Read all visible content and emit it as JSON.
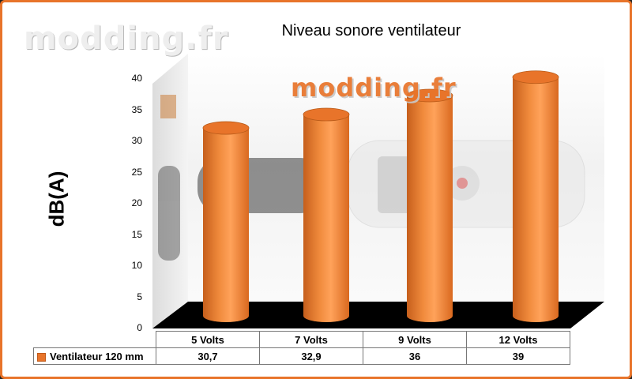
{
  "watermark": {
    "text": "modding.fr"
  },
  "chart_data": {
    "type": "bar",
    "title": "Niveau sonore ventilateur",
    "xlabel": "",
    "ylabel": "dB(A)",
    "categories": [
      "5 Volts",
      "7 Volts",
      "9 Volts",
      "12 Volts"
    ],
    "series": [
      {
        "name": "Ventilateur 120 mm",
        "values": [
          30.7,
          32.9,
          36,
          39
        ],
        "display_values": [
          "30,7",
          "32,9",
          "36",
          "39"
        ]
      }
    ],
    "ylim": [
      0,
      40
    ],
    "yticks": [
      "0",
      "5",
      "10",
      "15",
      "20",
      "25",
      "30",
      "35",
      "40"
    ],
    "grid": false,
    "legend": "data-table",
    "colors": {
      "bar": "#e8742a",
      "bar_dark": "#b85a18",
      "bar_light": "#ffb070",
      "frame": "#e8742a",
      "floor": "#000000"
    }
  }
}
